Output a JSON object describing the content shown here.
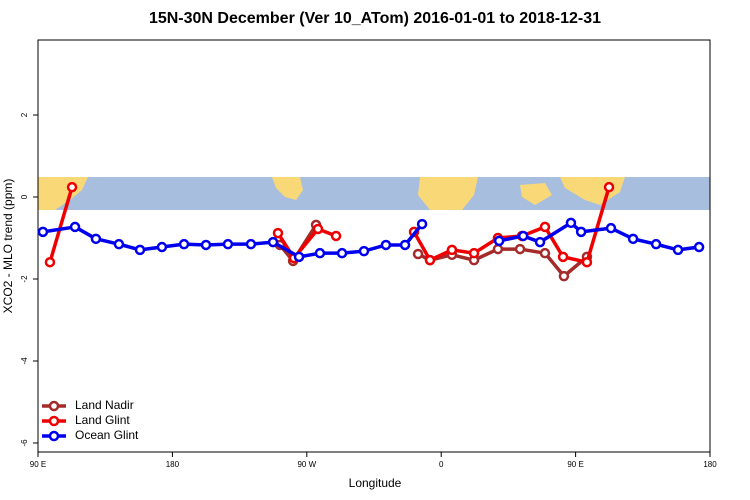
{
  "chart_data": {
    "type": "line",
    "title": "15N-30N December (Ver 10_ATom)   2016-01-01 to 2018-12-31",
    "xlabel": "Longitude",
    "ylabel": "XCO2 - MLO trend (ppm)",
    "xlim": [
      90,
      540
    ],
    "ylim": [
      -6.22,
      3.83
    ],
    "xticks": [
      {
        "value": 90,
        "label": "90 E"
      },
      {
        "value": 180,
        "label": "180"
      },
      {
        "value": 270,
        "label": "90 W"
      },
      {
        "value": 360,
        "label": "0"
      },
      {
        "value": 450,
        "label": "90 E"
      },
      {
        "value": 540,
        "label": "180"
      }
    ],
    "yticks": [
      -6,
      -4,
      -2,
      0,
      2
    ],
    "legend": "bottom-left",
    "series": [
      {
        "name": "Land Nadir",
        "color": "#a52a2a",
        "x": [
          252,
          260.8,
          276.2,
          null,
          344.5,
          352.5,
          367.2,
          382,
          398,
          412.8,
          429.5,
          442.2,
          457.6
        ],
        "values": [
          -1.17,
          -1.56,
          -0.68,
          null,
          -1.39,
          -1.54,
          -1.41,
          -1.54,
          -1.27,
          -1.27,
          -1.37,
          -1.93,
          -1.46
        ]
      },
      {
        "name": "Land Glint",
        "color": "#ee0000",
        "x": [
          98,
          112.8,
          null,
          250.7,
          261.4,
          277.5,
          289.6,
          null,
          341.8,
          352.5,
          367.2,
          382,
          398,
          414.1,
          429.5,
          441.6,
          457.6,
          472.4
        ],
        "values": [
          -1.59,
          0.24,
          null,
          -0.88,
          -1.49,
          -0.78,
          -0.95,
          null,
          -0.85,
          -1.54,
          -1.29,
          -1.37,
          -1.0,
          -0.95,
          -0.73,
          -1.46,
          -1.59,
          0.24
        ]
      },
      {
        "name": "Ocean Glint",
        "color": "#0000ee",
        "x": [
          93.3,
          114.8,
          128.8,
          144.2,
          158.3,
          173,
          187.8,
          202.5,
          217.2,
          232.6,
          247.4,
          264.8,
          278.8,
          293.6,
          308.3,
          323,
          335.8,
          347.2,
          null,
          398.8,
          414.9,
          426.2,
          446.9,
          453.7,
          473.7,
          488.5,
          503.9,
          518.6,
          532.7
        ],
        "values": [
          -0.85,
          -0.73,
          -1.02,
          -1.15,
          -1.29,
          -1.22,
          -1.15,
          -1.17,
          -1.15,
          -1.15,
          -1.1,
          -1.46,
          -1.37,
          -1.37,
          -1.32,
          -1.17,
          -1.17,
          -0.66,
          null,
          -1.07,
          -0.95,
          -1.1,
          -0.63,
          -0.85,
          -0.76,
          -1.02,
          -1.15,
          -1.29,
          -1.22
        ]
      }
    ]
  }
}
